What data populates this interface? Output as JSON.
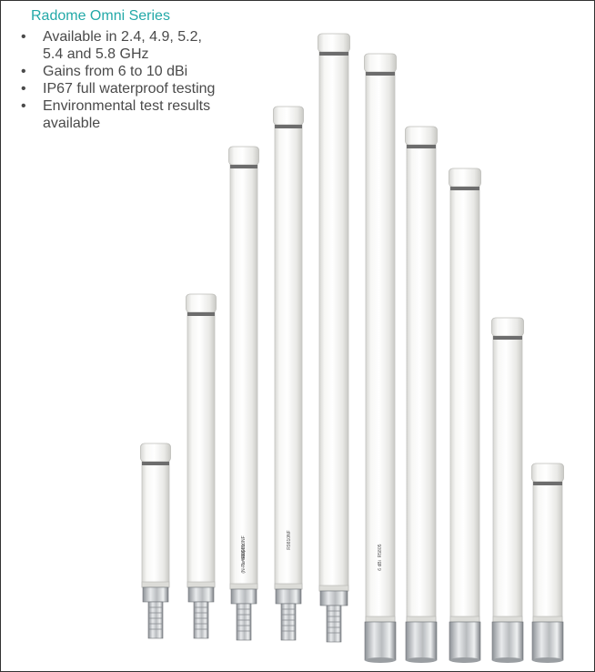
{
  "heading": "Radome Omni Series",
  "features": [
    "Available in 2.4, 4.9, 5.2, 5.4 and 5.8 GHz",
    "Gains from 6 to 10 dBi",
    "IP67 full waterproof testing",
    "Environmental test results available"
  ],
  "antenna_labels": [
    "RO0610NF",
    "5.470 GHz",
    "(N-Female)",
    "R9810NF",
    "R5805",
    "6 dBi"
  ],
  "colors": {
    "accent": "#23a9a8",
    "text": "#4a4a4a",
    "radome": "#f1f1ef",
    "connector_metal": "#b9bcbf"
  }
}
